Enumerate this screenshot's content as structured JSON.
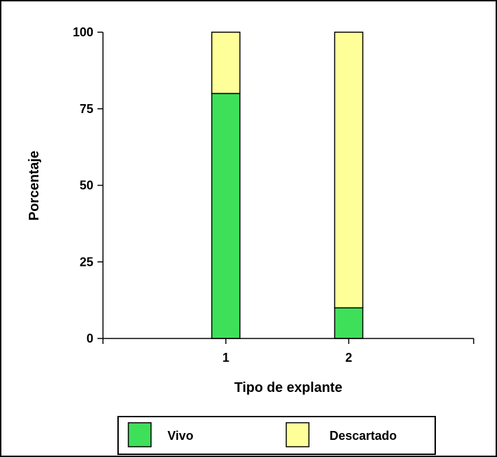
{
  "chart_data": {
    "type": "bar",
    "stacked": true,
    "categories": [
      "1",
      "2"
    ],
    "series": [
      {
        "name": "Vivo",
        "values": [
          80,
          10
        ],
        "color": "#3ee05a"
      },
      {
        "name": "Descartado",
        "values": [
          20,
          90
        ],
        "color": "#ffff99"
      }
    ],
    "xlabel": "Tipo de explante",
    "ylabel": "Porcentaje",
    "ylim": [
      0,
      100
    ],
    "yticks": [
      0,
      25,
      50,
      75,
      100
    ],
    "grid": false,
    "legend_position": "bottom"
  }
}
